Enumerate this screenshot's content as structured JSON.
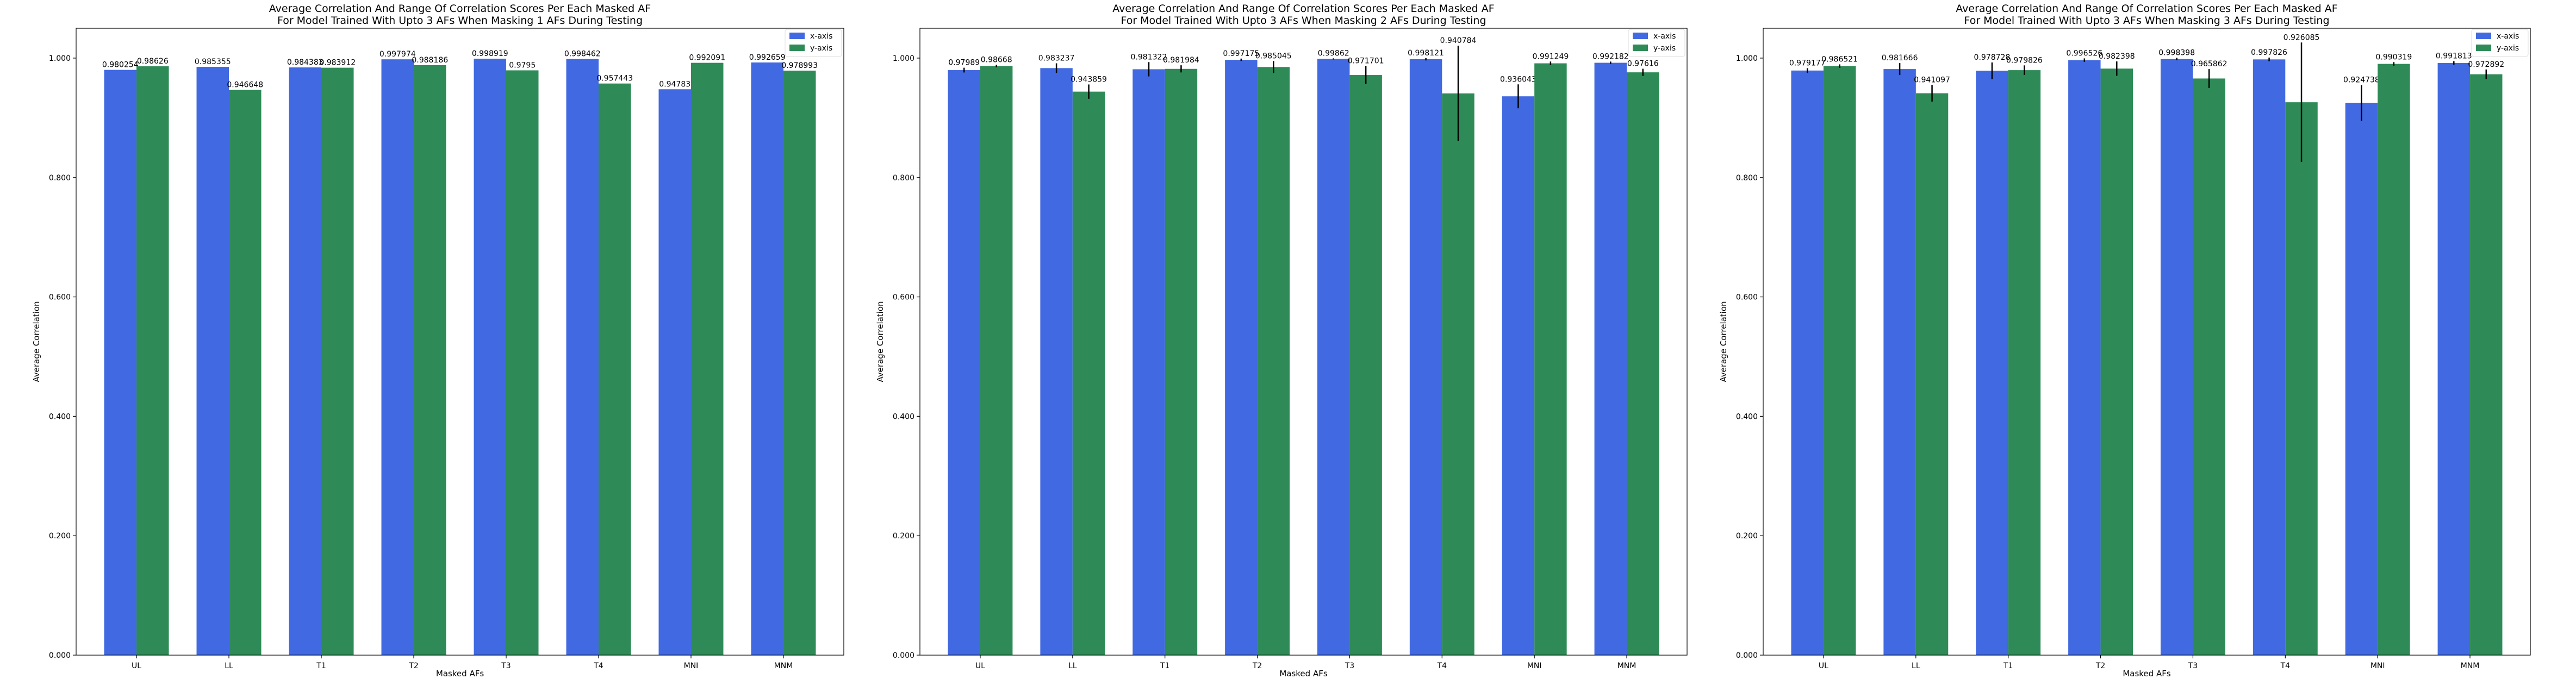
{
  "chart_data": [
    {
      "type": "bar",
      "title": "Average Correlation And Range Of Correlation Scores Per Each Masked AF",
      "subtitle": "For Model Trained With Upto 3 AFs When Masking 1 AFs During Testing",
      "xlabel": "Masked AFs",
      "ylabel": "Average Correlation",
      "ylim": [
        0,
        1.05
      ],
      "yticks": [
        "0.000",
        "0.200",
        "0.400",
        "0.600",
        "0.800",
        "1.000"
      ],
      "categories": [
        "UL",
        "LL",
        "T1",
        "T2",
        "T3",
        "T4",
        "MNI",
        "MNM"
      ],
      "legend_position": "top-right",
      "series": [
        {
          "name": "x-axis",
          "color": "#4169e1",
          "values": [
            0.980254,
            0.985355,
            0.984383,
            0.997974,
            0.998919,
            0.998462,
            0.94783,
            0.992659
          ],
          "labels": [
            "0.980254",
            "0.985355",
            "0.984383",
            "0.997974",
            "0.998919",
            "0.998462",
            "0.94783",
            "0.992659"
          ],
          "err": [
            0,
            0,
            0,
            0,
            0,
            0,
            0,
            0
          ]
        },
        {
          "name": "y-axis",
          "color": "#2e8b57",
          "values": [
            0.98626,
            0.946648,
            0.983912,
            0.988186,
            0.9795,
            0.957443,
            0.992091,
            0.978993
          ],
          "labels": [
            "0.98626",
            "0.946648",
            "0.983912",
            "0.988186",
            "0.9795",
            "0.957443",
            "0.992091",
            "0.978993"
          ],
          "err": [
            0,
            0,
            0,
            0,
            0,
            0,
            0,
            0
          ]
        }
      ]
    },
    {
      "type": "bar",
      "title": "Average Correlation And Range Of Correlation Scores Per Each Masked AF",
      "subtitle": "For Model Trained With Upto 3 AFs When Masking 2 AFs During Testing",
      "xlabel": "Masked AFs",
      "ylabel": "Average Correlation",
      "ylim": [
        0,
        1.05
      ],
      "yticks": [
        "0.000",
        "0.200",
        "0.400",
        "0.600",
        "0.800",
        "1.000"
      ],
      "categories": [
        "UL",
        "LL",
        "T1",
        "T2",
        "T3",
        "T4",
        "MNI",
        "MNM"
      ],
      "legend_position": "top-right",
      "series": [
        {
          "name": "x-axis",
          "color": "#4169e1",
          "values": [
            0.97989,
            0.983237,
            0.981322,
            0.997175,
            0.99862,
            0.998121,
            0.936043,
            0.992182
          ],
          "labels": [
            "0.97989",
            "0.983237",
            "0.981322",
            "0.997175",
            "0.99862",
            "0.998121",
            "0.936043",
            "0.992182"
          ],
          "err": [
            0.004,
            0.008,
            0.012,
            0.002,
            0.001,
            0.002,
            0.02,
            0.002
          ]
        },
        {
          "name": "y-axis",
          "color": "#2e8b57",
          "values": [
            0.98668,
            0.943859,
            0.981984,
            0.985045,
            0.971701,
            0.940784,
            0.991249,
            0.97616
          ],
          "labels": [
            "0.98668",
            "0.943859",
            "0.981984",
            "0.985045",
            "0.971701",
            "0.940784",
            "0.991249",
            "0.97616"
          ],
          "err": [
            0.002,
            0.012,
            0.006,
            0.01,
            0.015,
            0.08,
            0.003,
            0.006
          ]
        }
      ]
    },
    {
      "type": "bar",
      "title": "Average Correlation And Range Of Correlation Scores Per Each Masked AF",
      "subtitle": "For Model Trained With Upto 3 AFs When Masking 3 AFs During Testing",
      "xlabel": "Masked AFs",
      "ylabel": "Average Correlation",
      "ylim": [
        0,
        1.05
      ],
      "yticks": [
        "0.000",
        "0.200",
        "0.400",
        "0.600",
        "0.800",
        "1.000"
      ],
      "categories": [
        "UL",
        "LL",
        "T1",
        "T2",
        "T3",
        "T4",
        "MNI",
        "MNM"
      ],
      "legend_position": "top-right",
      "series": [
        {
          "name": "x-axis",
          "color": "#4169e1",
          "values": [
            0.979177,
            0.981666,
            0.978728,
            0.996526,
            0.998398,
            0.997826,
            0.924738,
            0.991813
          ],
          "labels": [
            "0.979177",
            "0.981666",
            "0.978728",
            "0.996526",
            "0.998398",
            "0.997826",
            "0.924738",
            "0.991813"
          ],
          "err": [
            0.004,
            0.01,
            0.014,
            0.003,
            0.002,
            0.003,
            0.03,
            0.003
          ]
        },
        {
          "name": "y-axis",
          "color": "#2e8b57",
          "values": [
            0.986521,
            0.941097,
            0.979826,
            0.982398,
            0.965862,
            0.926085,
            0.990319,
            0.972892
          ],
          "labels": [
            "0.986521",
            "0.941097",
            "0.979826",
            "0.982398",
            "0.965862",
            "0.926085",
            "0.990319",
            "0.972892"
          ],
          "err": [
            0.003,
            0.014,
            0.008,
            0.012,
            0.016,
            0.1,
            0.003,
            0.008
          ]
        }
      ]
    }
  ]
}
